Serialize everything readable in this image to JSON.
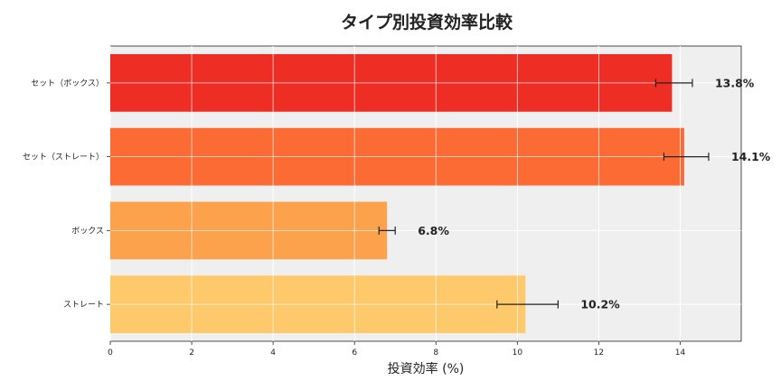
{
  "chart_data": {
    "type": "bar",
    "orientation": "horizontal",
    "title": "タイプ別投資効率比較",
    "xlabel": "投資効率 (%)",
    "ylabel": "",
    "categories": [
      "セット（ボックス）",
      "セット（ストレート）",
      "ボックス",
      "ストレート"
    ],
    "values": [
      13.8,
      14.1,
      6.8,
      10.2
    ],
    "error_low": [
      13.4,
      13.6,
      6.6,
      9.5
    ],
    "error_high": [
      14.3,
      14.7,
      7.0,
      11.0
    ],
    "data_labels": [
      "13.8%",
      "14.1%",
      "6.8%",
      "10.2%"
    ],
    "colors": [
      "#ee2e24",
      "#fd6b35",
      "#fca24c",
      "#fdc96b"
    ],
    "xlim": [
      0,
      15.5
    ],
    "xticks": [
      0,
      2,
      4,
      6,
      8,
      10,
      12,
      14
    ],
    "grid": true,
    "background": "#efefef"
  }
}
